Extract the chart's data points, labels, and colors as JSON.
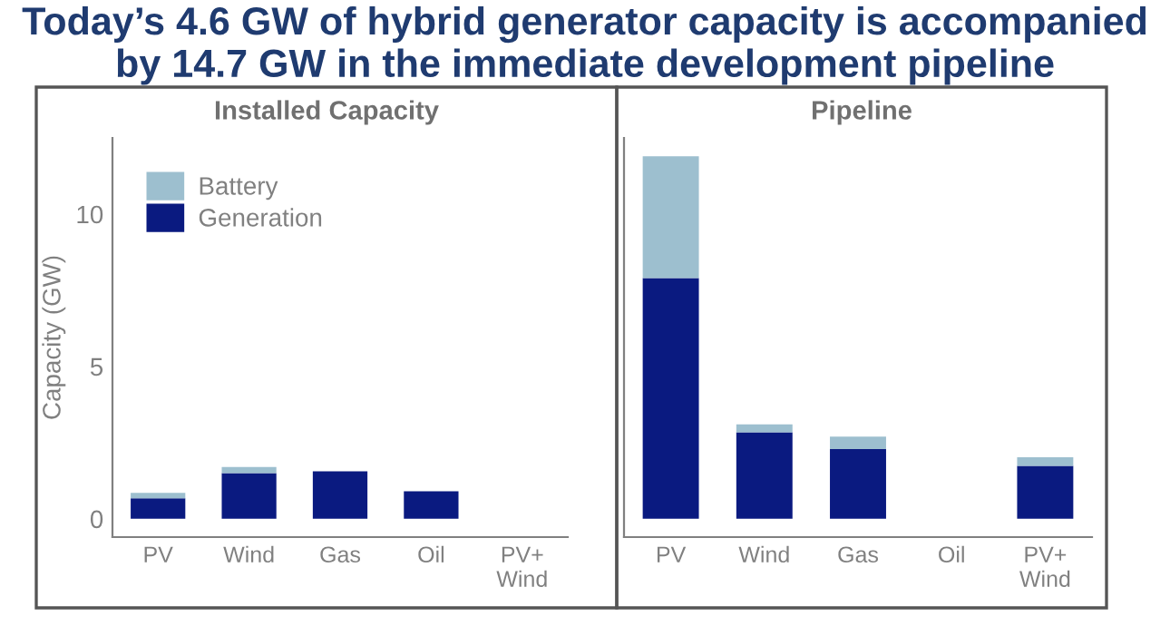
{
  "chart_data": [
    {
      "type": "bar",
      "title": "Today’s 4.6 GW of hybrid generator capacity is accompanied by 14.7 GW in the immediate development pipeline",
      "subtitle": "Installed Capacity",
      "ylabel": "Capacity (GW)",
      "categories": [
        "PV",
        "Wind",
        "Gas",
        "Oil",
        "PV+\nWind"
      ],
      "stacked": true,
      "legend": "top left",
      "ylim": [
        -0.6,
        12.5
      ],
      "yticks": [
        0,
        5,
        10
      ],
      "grid": false,
      "series": [
        {
          "name": "Generation",
          "color": "#0a1a80",
          "values": [
            0.67,
            1.5,
            1.56,
            0.9,
            0
          ]
        },
        {
          "name": "Battery",
          "color": "#9dbfcf",
          "values": [
            0.18,
            0.2,
            0,
            0,
            0
          ]
        }
      ]
    },
    {
      "type": "bar",
      "subtitle": "Pipeline",
      "categories": [
        "PV",
        "Wind",
        "Gas",
        "Oil",
        "PV+\nWind"
      ],
      "stacked": true,
      "ylim": [
        -0.6,
        12.5
      ],
      "yticks": [
        0,
        5,
        10
      ],
      "tick_labels": "x",
      "grid": false,
      "series": [
        {
          "color": "#0a1a80",
          "values": [
            7.9,
            2.84,
            2.29,
            0,
            1.74
          ]
        },
        {
          "color": "#9dbfcf",
          "values": [
            4.0,
            0.26,
            0.41,
            0,
            0.28
          ]
        }
      ]
    }
  ]
}
